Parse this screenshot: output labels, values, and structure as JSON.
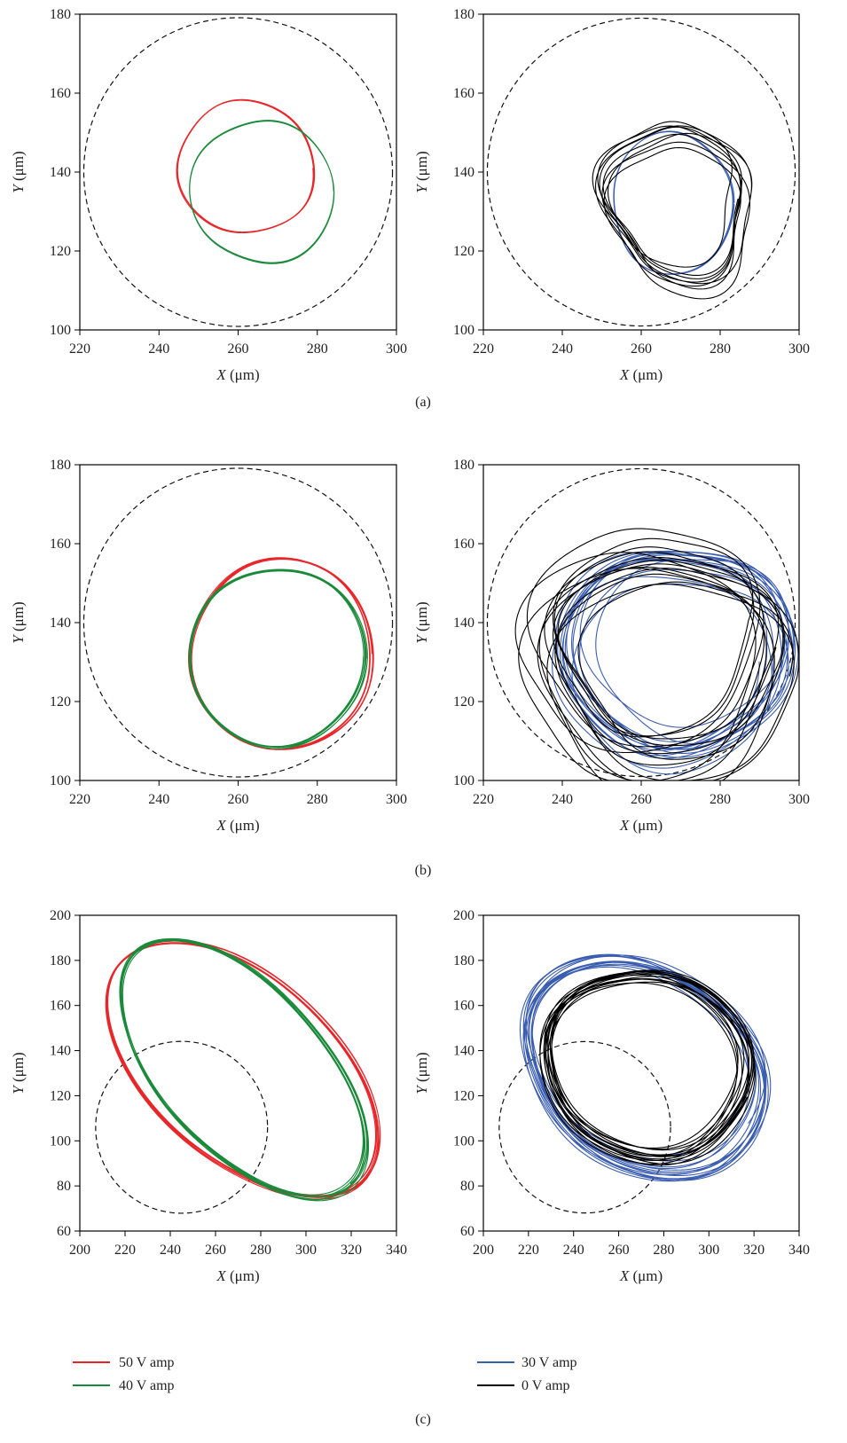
{
  "panel_labels": [
    "(a)",
    "(b)",
    "(c)"
  ],
  "legend": [
    {
      "label": "50 V amp",
      "color": "#e8262a"
    },
    {
      "label": "40 V amp",
      "color": "#1a8a3a"
    },
    {
      "label": "30 V amp",
      "color": "#3a5db0"
    },
    {
      "label": "0 V amp",
      "color": "#000000"
    }
  ],
  "chart_data": [
    {
      "type": "line",
      "panel": "(a)",
      "xlabel_var": "X",
      "xlabel_unit": "(μm)",
      "ylabel_var": "Y",
      "ylabel_unit": "(μm)",
      "xlim": [
        220,
        300
      ],
      "ylim": [
        100,
        180
      ],
      "xticks": [
        220,
        240,
        260,
        280,
        300
      ],
      "yticks": [
        100,
        120,
        140,
        160,
        180
      ],
      "boundary": {
        "cx": 260,
        "cy": 140,
        "r": 39
      },
      "series": [
        {
          "name": "50 V amp",
          "color": "#e8262a",
          "cx": 262,
          "cy": 141,
          "rx": 17,
          "ry": 17,
          "angle": 0,
          "loops": 3,
          "jitter": 0.6,
          "drift": 0.3
        },
        {
          "name": "40 V amp",
          "color": "#1a8a3a",
          "cx": 266,
          "cy": 135,
          "rx": 18,
          "ry": 18,
          "angle": 0,
          "loops": 3,
          "jitter": 0.6,
          "drift": 0.3
        }
      ]
    },
    {
      "type": "line",
      "panel": "(a)",
      "xlabel_var": "X",
      "xlabel_unit": "(μm)",
      "ylabel_var": "Y",
      "ylabel_unit": "(μm)",
      "xlim": [
        220,
        300
      ],
      "ylim": [
        100,
        180
      ],
      "xticks": [
        220,
        240,
        260,
        280,
        300
      ],
      "yticks": [
        100,
        120,
        140,
        160,
        180
      ],
      "boundary": {
        "cx": 260,
        "cy": 140,
        "r": 39
      },
      "series": [
        {
          "name": "30 V amp",
          "color": "#3a5db0",
          "cx": 268,
          "cy": 132,
          "rx": 15,
          "ry": 18,
          "angle": 0,
          "loops": 3,
          "jitter": 0.5,
          "drift": 0.3
        },
        {
          "name": "0 V amp",
          "color": "#000000",
          "cx": 270,
          "cy": 132,
          "rx": 18,
          "ry": 20,
          "angle": 0,
          "loops": 8,
          "jitter": 2.5,
          "drift": 5
        }
      ]
    },
    {
      "type": "line",
      "panel": "(b)",
      "xlabel_var": "X",
      "xlabel_unit": "(μm)",
      "ylabel_var": "Y",
      "ylabel_unit": "(μm)",
      "xlim": [
        220,
        300
      ],
      "ylim": [
        100,
        180
      ],
      "xticks": [
        220,
        240,
        260,
        280,
        300
      ],
      "yticks": [
        100,
        120,
        140,
        160,
        180
      ],
      "boundary": {
        "cx": 260,
        "cy": 140,
        "r": 39
      },
      "series": [
        {
          "name": "50 V amp",
          "color": "#e8262a",
          "cx": 271,
          "cy": 132,
          "rx": 23,
          "ry": 24,
          "angle": 0,
          "loops": 6,
          "jitter": 0.4,
          "drift": 0.5
        },
        {
          "name": "40 V amp",
          "color": "#1a8a3a",
          "cx": 270,
          "cy": 131,
          "rx": 22,
          "ry": 22.5,
          "angle": 0,
          "loops": 6,
          "jitter": 0.4,
          "drift": 0.5
        }
      ]
    },
    {
      "type": "line",
      "panel": "(b)",
      "xlabel_var": "X",
      "xlabel_unit": "(μm)",
      "ylabel_var": "Y",
      "ylabel_unit": "(μm)",
      "xlim": [
        220,
        300
      ],
      "ylim": [
        100,
        180
      ],
      "xticks": [
        220,
        240,
        260,
        280,
        300
      ],
      "yticks": [
        100,
        120,
        140,
        160,
        180
      ],
      "boundary": {
        "cx": 260,
        "cy": 140,
        "r": 39
      },
      "series": [
        {
          "name": "30 V amp",
          "color": "#3a5db0",
          "cx": 268,
          "cy": 132,
          "rx": 26,
          "ry": 24,
          "angle": 0,
          "loops": 14,
          "jitter": 1.2,
          "drift": 6
        },
        {
          "name": "0 V amp",
          "color": "#000000",
          "cx": 268,
          "cy": 132,
          "rx": 28,
          "ry": 28,
          "angle": 0,
          "loops": 14,
          "jitter": 2.5,
          "drift": 9
        }
      ]
    },
    {
      "type": "line",
      "panel": "(c)",
      "xlabel_var": "X",
      "xlabel_unit": "(μm)",
      "ylabel_var": "Y",
      "ylabel_unit": "(μm)",
      "xlim": [
        200,
        340
      ],
      "ylim": [
        60,
        200
      ],
      "xticks": [
        200,
        220,
        240,
        260,
        280,
        300,
        320,
        340
      ],
      "yticks": [
        60,
        80,
        100,
        120,
        140,
        160,
        180,
        200
      ],
      "boundary": {
        "cx": 245,
        "cy": 106,
        "r": 38
      },
      "series": [
        {
          "name": "50 V amp",
          "color": "#e8262a",
          "cx": 272,
          "cy": 132,
          "rx": 72,
          "ry": 40,
          "angle": -42,
          "loops": 8,
          "jitter": 0.6,
          "drift": 1.2
        },
        {
          "name": "40 V amp",
          "color": "#1a8a3a",
          "cx": 272,
          "cy": 132,
          "rx": 70,
          "ry": 36,
          "angle": -48,
          "loops": 8,
          "jitter": 0.6,
          "drift": 1.2
        }
      ]
    },
    {
      "type": "line",
      "panel": "(c)",
      "xlabel_var": "X",
      "xlabel_unit": "(μm)",
      "ylabel_var": "Y",
      "ylabel_unit": "(μm)",
      "xlim": [
        200,
        340
      ],
      "ylim": [
        60,
        200
      ],
      "xticks": [
        200,
        220,
        240,
        260,
        280,
        300,
        320,
        340
      ],
      "yticks": [
        60,
        80,
        100,
        120,
        140,
        160,
        180,
        200
      ],
      "boundary": {
        "cx": 245,
        "cy": 106,
        "r": 38
      },
      "series": [
        {
          "name": "30 V amp",
          "color": "#3a5db0",
          "cx": 270,
          "cy": 134,
          "rx": 54,
          "ry": 42,
          "angle": -35,
          "loops": 14,
          "jitter": 1.5,
          "drift": 5
        },
        {
          "name": "0 V amp",
          "color": "#000000",
          "cx": 272,
          "cy": 134,
          "rx": 44,
          "ry": 40,
          "angle": -20,
          "loops": 14,
          "jitter": 1.5,
          "drift": 4
        }
      ]
    }
  ]
}
